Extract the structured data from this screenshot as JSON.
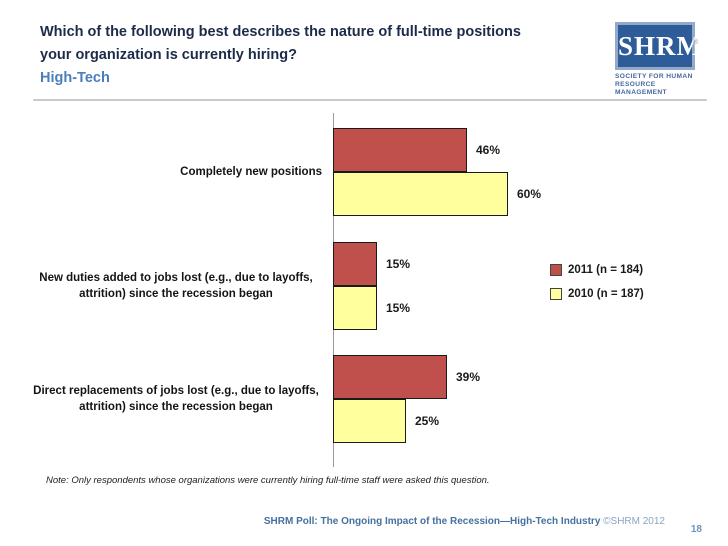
{
  "header": {
    "question_line1": "Which of the following best describes the nature of full-time positions",
    "question_line2": "your organization is currently hiring?",
    "subtitle": "High-Tech",
    "logo": {
      "acronym": "SHRM",
      "registered_mark": "®",
      "tagline_line1": "SOCIETY FOR HUMAN",
      "tagline_line2": "RESOURCE MANAGEMENT"
    }
  },
  "chart_data": {
    "type": "bar",
    "orientation": "horizontal",
    "categories": [
      "Completely new positions",
      "New duties added to jobs lost (e.g., due to layoffs, attrition) since the recession began",
      "Direct replacements of jobs lost (e.g., due to layoffs, attrition) since the recession began"
    ],
    "series": [
      {
        "name": "2011 (n = 184)",
        "color": "#bf504b",
        "values": [
          46,
          15,
          39
        ]
      },
      {
        "name": "2010 (n = 187)",
        "color": "#ffff9e",
        "values": [
          60,
          15,
          25
        ]
      }
    ],
    "value_suffix": "%",
    "xlim": [
      0,
      100
    ],
    "grid": false,
    "legend_position": "right",
    "data_labels": true
  },
  "note": "Note: Only respondents whose organizations were currently hiring full-time staff were asked this question.",
  "footer": {
    "source_bold": "SHRM Poll: The Ongoing Impact of the Recession—High-Tech Industry",
    "source_light": "©SHRM 2012",
    "page_number": "18"
  }
}
